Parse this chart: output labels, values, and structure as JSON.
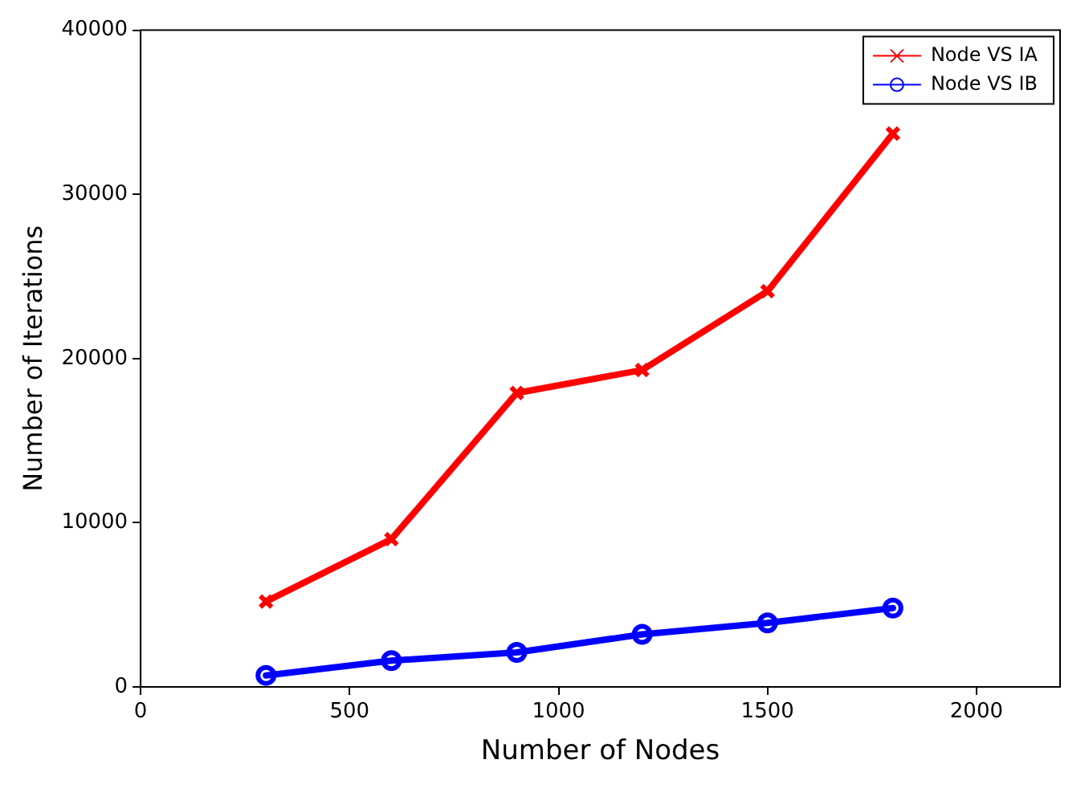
{
  "chart_data": {
    "type": "line",
    "xlabel": "Number of Nodes",
    "ylabel": "Number of Iterations",
    "x": [
      300,
      600,
      900,
      1200,
      1500,
      1800
    ],
    "series": [
      {
        "name": "Node VS IA",
        "color": "#ff0000",
        "marker": "cross",
        "values": [
          5200,
          9000,
          17900,
          19300,
          24100,
          33700
        ]
      },
      {
        "name": "Node VS IB",
        "color": "#0000ff",
        "marker": "circle",
        "values": [
          700,
          1600,
          2100,
          3200,
          3900,
          4800
        ]
      }
    ],
    "xlim": [
      0,
      2200
    ],
    "xticks": [
      0,
      500,
      1000,
      1500,
      2000
    ],
    "ylim": [
      0,
      40000
    ],
    "yticks": [
      0,
      10000,
      20000,
      30000,
      40000
    ],
    "grid": false,
    "legend": "top right",
    "line_style": "solid"
  }
}
